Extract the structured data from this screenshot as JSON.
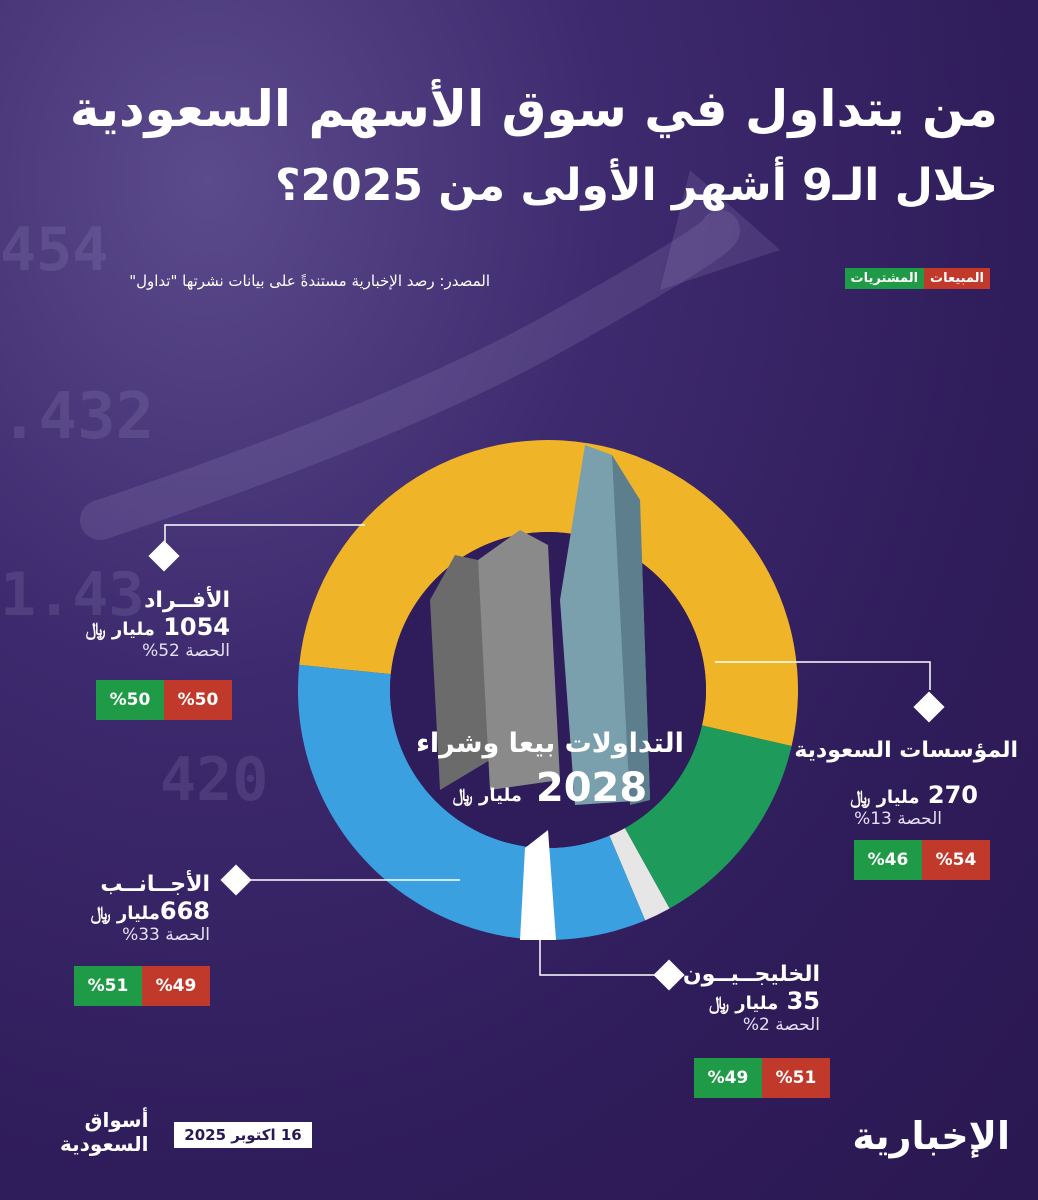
{
  "title": {
    "line1": "من يتداول في سوق الأسهم السعودية",
    "line2": "خلال الـ9 أشهر الأولى من 2025؟"
  },
  "source": "المصدر: رصد الإخبارية مستندةً على بيانات نشرتها \"تداول\"",
  "legend": {
    "sales": "المبيعات",
    "purchases": "المشتريات"
  },
  "center": {
    "label": "التداولات بيعا وشراء",
    "value": "2028",
    "unit": "مليار ﷼"
  },
  "categories": [
    {
      "key": "individuals",
      "name": "الأفــراد",
      "value_text": "1054",
      "unit": "مليار ﷼",
      "share_text": "الحصة 52%",
      "sell_text": "%50",
      "buy_text": "%50"
    },
    {
      "key": "saudi_institutions",
      "name": "المؤسسات السعودية",
      "value_text": "270",
      "unit": "مليار ﷼",
      "share_text": "الحصة 13%",
      "sell_text": "%54",
      "buy_text": "%46"
    },
    {
      "key": "foreigners",
      "name": "الأجــانــب",
      "value_text": "668",
      "unit": "مليار ﷼",
      "share_text": "الحصة 33%",
      "sell_text": "%49",
      "buy_text": "%51"
    },
    {
      "key": "gulf",
      "name": "الخليجــيــون",
      "value_text": "35",
      "unit": "مليار ﷼",
      "share_text": "الحصة 2%",
      "sell_text": "%51",
      "buy_text": "%49"
    }
  ],
  "chart_data": {
    "type": "pie",
    "variant": "donut",
    "title": "من يتداول في سوق الأسهم السعودية خلال الـ9 أشهر الأولى من 2025؟",
    "center_total": 2028,
    "unit": "مليار ﷼",
    "slices": [
      {
        "label": "الأفراد",
        "value": 1054,
        "share": 52,
        "color": "#f0b429",
        "sell_pct": 50,
        "buy_pct": 50
      },
      {
        "label": "المؤسسات السعودية",
        "value": 270,
        "share": 13,
        "color": "#1e9a5a",
        "sell_pct": 54,
        "buy_pct": 46
      },
      {
        "label": "الأجانب",
        "value": 668,
        "share": 33,
        "color": "#3aa0e0",
        "sell_pct": 49,
        "buy_pct": 51
      },
      {
        "label": "الخليجيون",
        "value": 35,
        "share": 2,
        "color": "#e6e6e6",
        "sell_pct": 51,
        "buy_pct": 49
      }
    ],
    "legend": [
      "المبيعات",
      "المشتريات"
    ],
    "legend_placement": "top-right"
  },
  "footer": {
    "date": "16 اكتوبر 2025",
    "brand_line1": "أسواق",
    "brand_line2": "السعودية",
    "logo": "الإخبارية"
  },
  "colors": {
    "background": "#2f1c5a",
    "sell": "#c0392b",
    "buy": "#1f9a46"
  }
}
